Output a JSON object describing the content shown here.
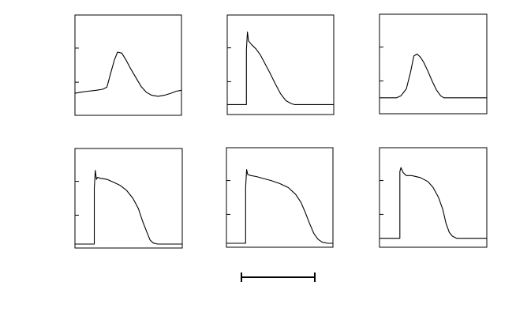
{
  "chart_data": [
    {
      "type": "line",
      "panel": "row1-col1",
      "xlim": [
        0,
        1
      ],
      "ylim": [
        0,
        1
      ],
      "yticks_unlabeled": [
        0.33,
        0.67
      ],
      "x": [
        0,
        0.05,
        0.12,
        0.2,
        0.26,
        0.3,
        0.33,
        0.37,
        0.4,
        0.44,
        0.48,
        0.52,
        0.57,
        0.62,
        0.67,
        0.72,
        0.78,
        0.84,
        0.9,
        0.95,
        1
      ],
      "values": [
        0.22,
        0.23,
        0.24,
        0.25,
        0.26,
        0.28,
        0.4,
        0.55,
        0.63,
        0.62,
        0.55,
        0.47,
        0.38,
        0.29,
        0.23,
        0.2,
        0.19,
        0.2,
        0.22,
        0.24,
        0.25
      ]
    },
    {
      "type": "line",
      "panel": "row1-col2",
      "xlim": [
        0,
        1
      ],
      "ylim": [
        0,
        1
      ],
      "yticks_unlabeled": [
        0.33,
        0.67
      ],
      "x": [
        0,
        0.09,
        0.18,
        0.18,
        0.19,
        0.2,
        0.23,
        0.27,
        0.31,
        0.35,
        0.4,
        0.45,
        0.5,
        0.55,
        0.6,
        0.63,
        0.66,
        0.7,
        0.8,
        0.9,
        1
      ],
      "values": [
        0.1,
        0.1,
        0.1,
        0.65,
        0.83,
        0.74,
        0.7,
        0.66,
        0.6,
        0.52,
        0.42,
        0.31,
        0.21,
        0.14,
        0.11,
        0.1,
        0.1,
        0.1,
        0.1,
        0.1,
        0.1
      ]
    },
    {
      "type": "line",
      "panel": "row1-col3",
      "xlim": [
        0,
        1
      ],
      "ylim": [
        0,
        1
      ],
      "yticks_unlabeled": [
        0.33,
        0.67
      ],
      "x": [
        0,
        0.08,
        0.16,
        0.2,
        0.25,
        0.29,
        0.32,
        0.35,
        0.38,
        0.41,
        0.45,
        0.49,
        0.53,
        0.57,
        0.6,
        0.63,
        0.68,
        0.8,
        0.9,
        1
      ],
      "values": [
        0.16,
        0.16,
        0.16,
        0.18,
        0.25,
        0.42,
        0.58,
        0.6,
        0.57,
        0.52,
        0.43,
        0.33,
        0.24,
        0.18,
        0.16,
        0.16,
        0.16,
        0.16,
        0.16,
        0.16
      ]
    },
    {
      "type": "line",
      "panel": "row2-col1",
      "xlim": [
        0,
        1
      ],
      "ylim": [
        0,
        1
      ],
      "yticks_unlabeled": [
        0.33,
        0.67
      ],
      "x": [
        0,
        0.09,
        0.18,
        0.18,
        0.19,
        0.2,
        0.21,
        0.24,
        0.3,
        0.36,
        0.42,
        0.48,
        0.54,
        0.59,
        0.63,
        0.67,
        0.7,
        0.73,
        0.77,
        0.8,
        0.85,
        0.9,
        1
      ],
      "values": [
        0.04,
        0.04,
        0.04,
        0.6,
        0.78,
        0.69,
        0.71,
        0.7,
        0.69,
        0.66,
        0.63,
        0.58,
        0.5,
        0.4,
        0.27,
        0.16,
        0.08,
        0.05,
        0.04,
        0.04,
        0.04,
        0.04,
        0.04
      ]
    },
    {
      "type": "line",
      "panel": "row2-col2",
      "xlim": [
        0,
        1
      ],
      "ylim": [
        0,
        1
      ],
      "yticks_unlabeled": [
        0.33,
        0.67
      ],
      "x": [
        0,
        0.09,
        0.18,
        0.18,
        0.19,
        0.2,
        0.23,
        0.28,
        0.35,
        0.42,
        0.5,
        0.58,
        0.65,
        0.7,
        0.74,
        0.78,
        0.82,
        0.86,
        0.9,
        0.95,
        1
      ],
      "values": [
        0.04,
        0.04,
        0.04,
        0.6,
        0.78,
        0.73,
        0.72,
        0.71,
        0.69,
        0.67,
        0.64,
        0.6,
        0.53,
        0.45,
        0.35,
        0.24,
        0.14,
        0.08,
        0.05,
        0.04,
        0.04
      ]
    },
    {
      "type": "line",
      "panel": "row2-col3",
      "xlim": [
        0,
        1
      ],
      "ylim": [
        0,
        1
      ],
      "yticks_unlabeled": [
        0.33,
        0.67
      ],
      "x": [
        0,
        0.09,
        0.19,
        0.19,
        0.2,
        0.22,
        0.25,
        0.3,
        0.38,
        0.45,
        0.5,
        0.55,
        0.59,
        0.62,
        0.65,
        0.68,
        0.72,
        0.8,
        0.9,
        1
      ],
      "values": [
        0.09,
        0.09,
        0.09,
        0.76,
        0.8,
        0.75,
        0.72,
        0.72,
        0.7,
        0.66,
        0.6,
        0.5,
        0.38,
        0.24,
        0.15,
        0.11,
        0.09,
        0.09,
        0.09,
        0.09
      ]
    }
  ]
}
